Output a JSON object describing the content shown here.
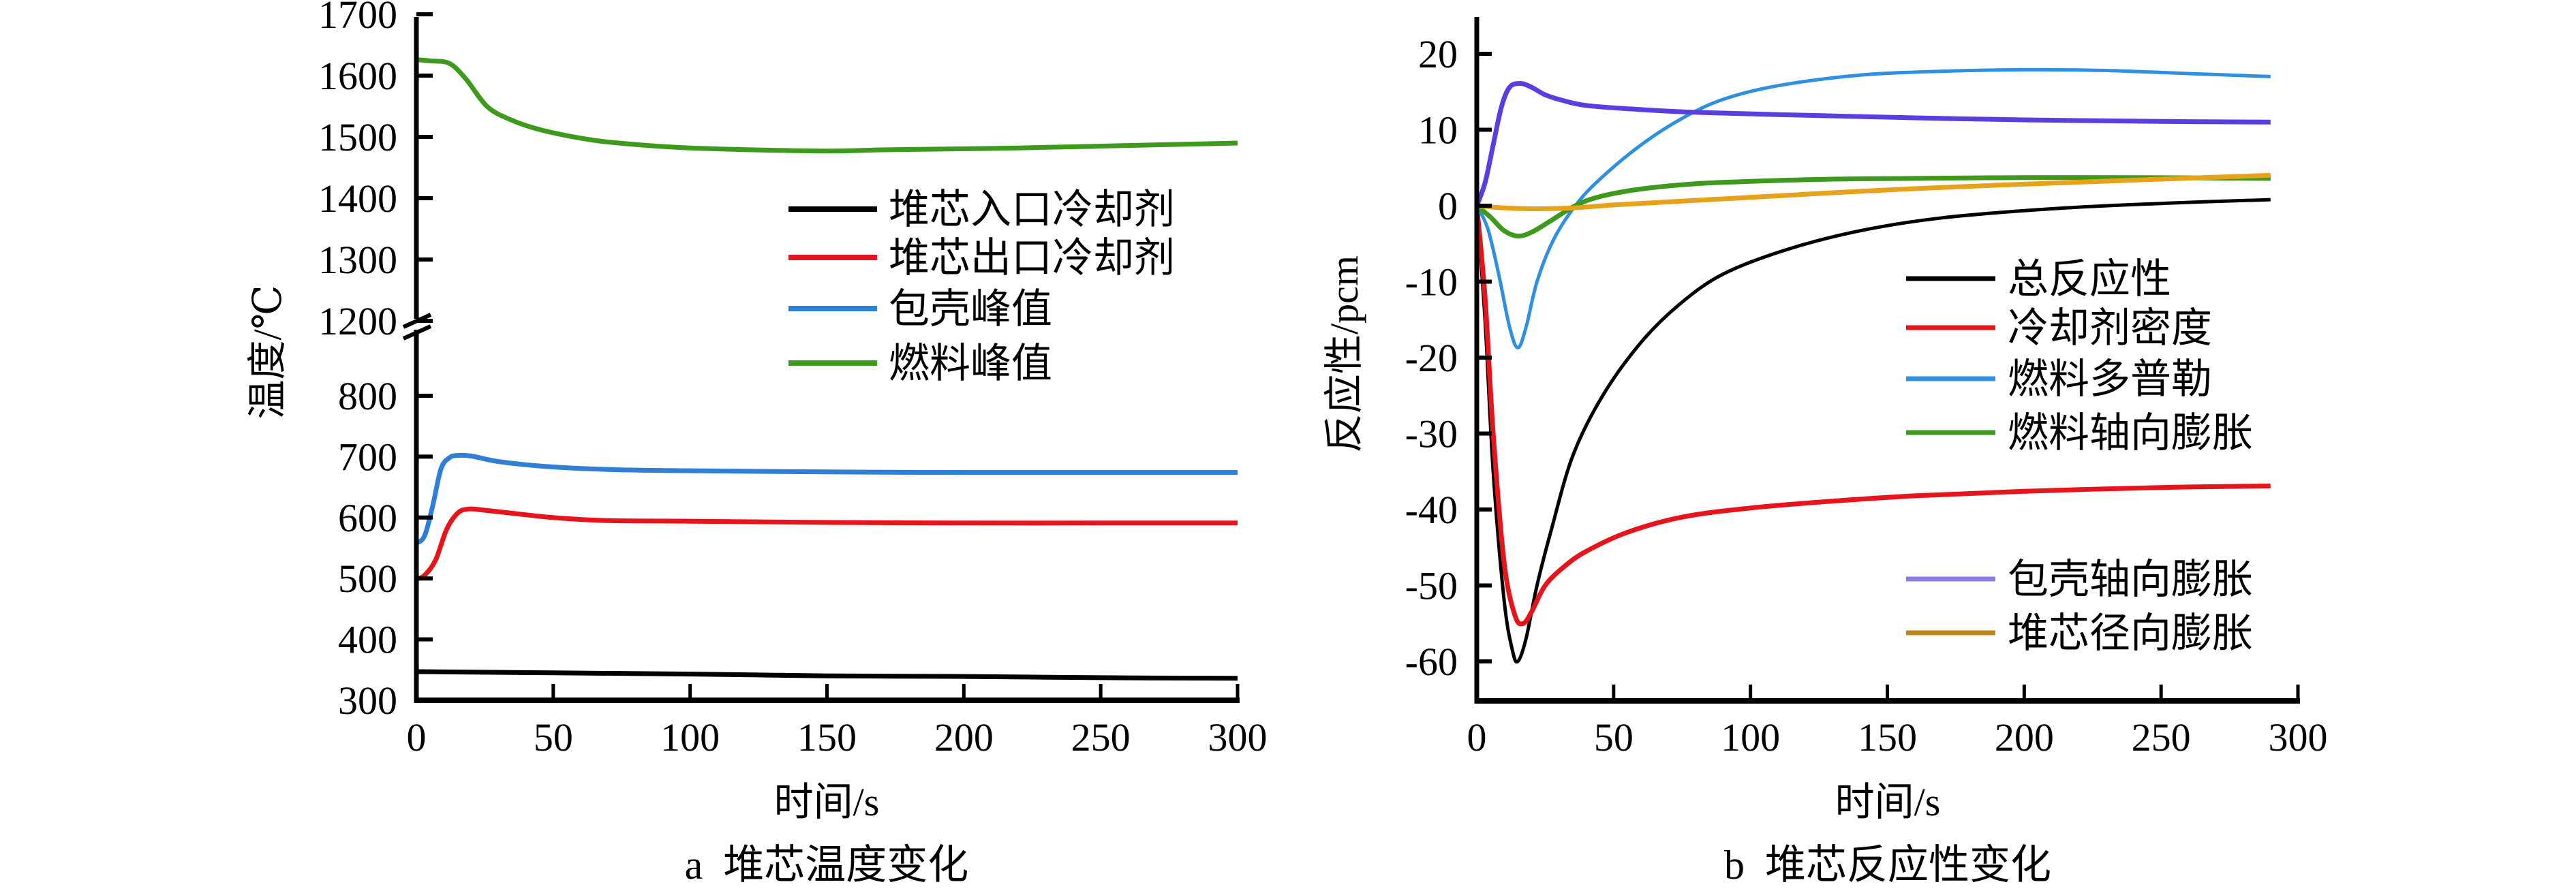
{
  "chart_data": [
    {
      "type": "line",
      "panel": "a",
      "title": "a  堆芯温度变化",
      "xlabel": "时间/s",
      "ylabel": "温度/℃",
      "xlim": [
        0,
        300
      ],
      "ylim": [
        300,
        1700
      ],
      "y_axis_break": [
        850,
        1180
      ],
      "xticks": [
        0,
        50,
        100,
        150,
        200,
        250,
        300
      ],
      "yticks": [
        300,
        400,
        500,
        600,
        700,
        800,
        1200,
        1300,
        1400,
        1500,
        1600,
        1700
      ],
      "grid": false,
      "legend_position": "center-right",
      "series": [
        {
          "name": "堆芯入口冷却剂",
          "color": "#000000",
          "x": [
            0,
            50,
            100,
            150,
            200,
            250,
            300
          ],
          "y": [
            347,
            345,
            343,
            340,
            339,
            337,
            336
          ]
        },
        {
          "name": "堆芯出口冷却剂",
          "color": "#e8141b",
          "x": [
            0,
            3,
            7,
            11,
            15,
            19,
            25,
            35,
            50,
            70,
            100,
            150,
            200,
            250,
            300
          ],
          "y": [
            499,
            505,
            530,
            580,
            607,
            614,
            612,
            607,
            600,
            595,
            594,
            592,
            591,
            591,
            591
          ]
        },
        {
          "name": "包壳峰值",
          "color": "#2f7fd6",
          "x": [
            0,
            3,
            6,
            9,
            12,
            15,
            20,
            30,
            47,
            70,
            97,
            150,
            200,
            250,
            300
          ],
          "y": [
            558,
            570,
            620,
            680,
            698,
            702,
            701,
            692,
            684,
            679,
            677,
            675,
            674,
            674,
            674
          ]
        },
        {
          "name": "燃料峰值",
          "color": "#3d9a1c",
          "x": [
            0,
            5,
            12,
            18,
            26,
            35,
            45,
            60,
            74,
            100,
            147,
            172,
            220,
            260,
            300
          ],
          "y": [
            1626,
            1624,
            1620,
            1595,
            1549,
            1527,
            1512,
            1498,
            1490,
            1482,
            1477,
            1479,
            1482,
            1486,
            1490
          ]
        }
      ],
      "legend_labels": [
        "堆芯入口冷却剂",
        "堆芯出口冷却剂",
        "包壳峰值",
        "燃料峰值"
      ]
    },
    {
      "type": "line",
      "panel": "b",
      "title": "b  堆芯反应性变化",
      "xlabel": "时间/s",
      "ylabel": "反应性/pcm",
      "xlim": [
        0,
        300
      ],
      "ylim": [
        -65,
        25
      ],
      "xticks": [
        0,
        50,
        100,
        150,
        200,
        250,
        300
      ],
      "yticks": [
        20,
        10,
        0,
        -10,
        -20,
        -30,
        -40,
        -50,
        -60
      ],
      "grid": false,
      "legend_position": "right",
      "series": [
        {
          "name": "总反应性",
          "color": "#000000",
          "x": [
            0,
            3,
            6,
            10,
            13,
            15,
            18,
            22,
            27,
            35,
            46,
            60,
            74,
            90,
            113,
            140,
            170,
            210,
            250,
            290
          ],
          "y": [
            0,
            -15,
            -35,
            -52,
            -58.5,
            -60,
            -57,
            -50,
            -43,
            -33,
            -25,
            -18,
            -13,
            -9,
            -5.8,
            -3.3,
            -1.6,
            -0.4,
            0.3,
            0.8
          ]
        },
        {
          "name": "冷却剂密度",
          "color": "#e8141b",
          "x": [
            0,
            3,
            6,
            10,
            14,
            17,
            20,
            25,
            32,
            40,
            55,
            75,
            100,
            130,
            160,
            200,
            250,
            290
          ],
          "y": [
            0,
            -12,
            -30,
            -47,
            -54,
            -55,
            -53.5,
            -50,
            -47.5,
            -45.5,
            -43,
            -41,
            -39.8,
            -38.9,
            -38.2,
            -37.6,
            -37.1,
            -36.9
          ]
        },
        {
          "name": "燃料多普勒",
          "color": "#2f8fe0",
          "x": [
            0,
            4,
            8,
            12,
            15,
            18,
            22,
            28,
            36,
            45,
            60,
            75,
            90,
            110,
            140,
            170,
            200,
            230,
            260,
            290
          ],
          "y": [
            0,
            -3,
            -9,
            -16,
            -18.7,
            -16,
            -10,
            -4.5,
            0,
            3.5,
            8,
            11.5,
            14,
            15.8,
            17.2,
            17.7,
            17.9,
            17.8,
            17.4,
            17.0
          ]
        },
        {
          "name": "燃料轴向膨胀",
          "color": "#3d9a1c",
          "x": [
            0,
            5,
            10,
            15,
            20,
            27,
            36,
            45,
            60,
            80,
            100,
            130,
            160,
            200,
            240,
            290
          ],
          "y": [
            0,
            -1.5,
            -3.3,
            -4.0,
            -3.5,
            -2.0,
            0,
            1.2,
            2.2,
            2.9,
            3.2,
            3.5,
            3.6,
            3.7,
            3.7,
            3.6
          ]
        },
        {
          "name": "包壳轴向膨胀",
          "color": "#5a3ee0",
          "x": [
            0,
            3,
            6,
            9,
            12,
            16,
            20,
            25,
            31,
            40,
            58,
            80,
            110,
            157,
            200,
            250,
            290
          ],
          "y": [
            0,
            3,
            8,
            13,
            15.6,
            16.1,
            15.6,
            14.6,
            13.9,
            13.2,
            12.7,
            12.3,
            12.0,
            11.6,
            11.3,
            11.1,
            11.0
          ]
        },
        {
          "name": "堆芯径向膨胀",
          "color": "#e8a21a",
          "x": [
            0,
            10,
            20,
            35,
            50,
            75,
            100,
            130,
            157,
            190,
            220,
            250,
            290
          ],
          "y": [
            0,
            -0.3,
            -0.4,
            -0.3,
            0.1,
            0.6,
            1.1,
            1.7,
            2.2,
            2.7,
            3.1,
            3.5,
            4.0
          ]
        }
      ],
      "legend_labels": [
        "总反应性",
        "冷却剂密度",
        "燃料多普勒",
        "燃料轴向膨胀",
        "包壳轴向膨胀",
        "堆芯径向膨胀"
      ],
      "legend_colors": [
        "#000000",
        "#e8141b",
        "#2f8fe0",
        "#3d9a1c",
        "#8c7ae6",
        "#b8861b"
      ]
    }
  ]
}
